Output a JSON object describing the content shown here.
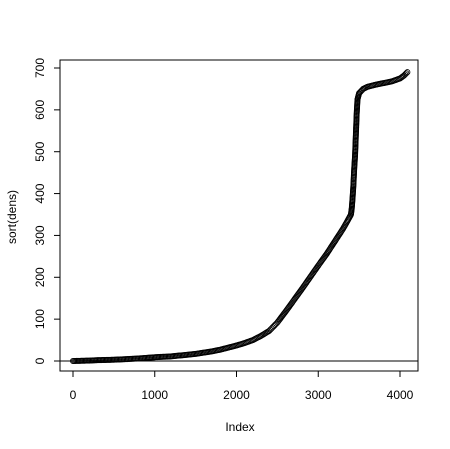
{
  "chart_data": {
    "type": "scatter",
    "title": "",
    "xlabel": "Index",
    "ylabel": "sort(dens)",
    "xlim": [
      0,
      4200
    ],
    "ylim": [
      0,
      700
    ],
    "xticks": [
      0,
      1000,
      2000,
      3000,
      4000
    ],
    "yticks": [
      0,
      100,
      200,
      300,
      400,
      500,
      600,
      700
    ],
    "reference_line": {
      "y": 0,
      "color": "#000000"
    },
    "marker": "open-circle",
    "point_color": "#000000",
    "grid": false,
    "series": [
      {
        "points": [
          [
            0,
            0
          ],
          [
            100,
            0.5
          ],
          [
            200,
            1
          ],
          [
            300,
            2
          ],
          [
            400,
            2.5
          ],
          [
            500,
            3
          ],
          [
            600,
            4
          ],
          [
            700,
            5
          ],
          [
            800,
            6
          ],
          [
            900,
            7.5
          ],
          [
            1000,
            9
          ],
          [
            1100,
            10
          ],
          [
            1200,
            11
          ],
          [
            1300,
            13
          ],
          [
            1400,
            15
          ],
          [
            1500,
            17
          ],
          [
            1600,
            20
          ],
          [
            1700,
            23
          ],
          [
            1800,
            27
          ],
          [
            1900,
            32
          ],
          [
            2000,
            37
          ],
          [
            2100,
            43
          ],
          [
            2200,
            50
          ],
          [
            2300,
            60
          ],
          [
            2400,
            72
          ],
          [
            2500,
            92
          ],
          [
            2600,
            118
          ],
          [
            2700,
            145
          ],
          [
            2800,
            172
          ],
          [
            2900,
            200
          ],
          [
            3000,
            228
          ],
          [
            3100,
            255
          ],
          [
            3200,
            285
          ],
          [
            3300,
            315
          ],
          [
            3350,
            332
          ],
          [
            3400,
            350
          ],
          [
            3410,
            365
          ],
          [
            3420,
            390
          ],
          [
            3430,
            420
          ],
          [
            3440,
            460
          ],
          [
            3450,
            490
          ],
          [
            3460,
            540
          ],
          [
            3470,
            590
          ],
          [
            3480,
            625
          ],
          [
            3500,
            640
          ],
          [
            3550,
            650
          ],
          [
            3600,
            655
          ],
          [
            3700,
            660
          ],
          [
            3800,
            664
          ],
          [
            3900,
            668
          ],
          [
            4000,
            675
          ],
          [
            4050,
            682
          ],
          [
            4090,
            690
          ]
        ]
      }
    ]
  }
}
